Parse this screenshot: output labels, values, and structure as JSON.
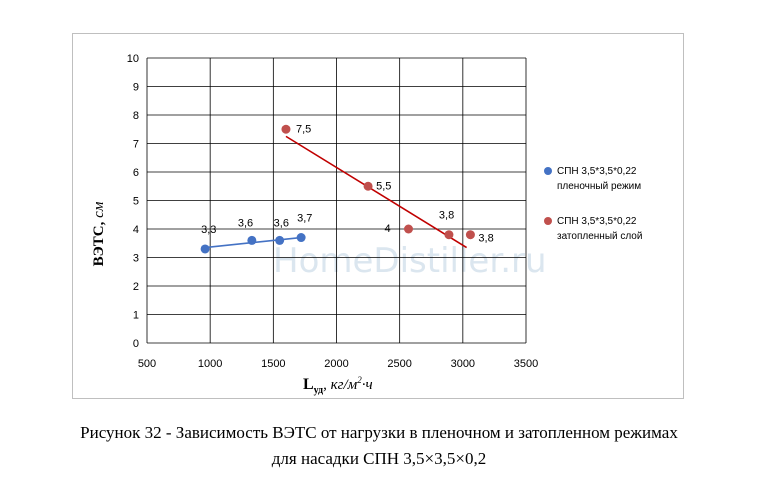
{
  "watermark": "HomeDistiller.ru",
  "caption": {
    "line1": "Рисунок 32 - Зависимость ВЭТС от нагрузки в пленочном и затопленном режимах",
    "line2": "для насадки СПН 3,5×3,5×0,2"
  },
  "chart_data": {
    "type": "scatter",
    "ylabel": {
      "main": "ВЭТС,",
      "unit": " см"
    },
    "xlabel": {
      "main": "L",
      "sub": "уд",
      "unit_pre": ", кг/м",
      "unit_sup": "2",
      "unit_post": "·ч"
    },
    "xlim": [
      500,
      3500
    ],
    "ylim": [
      0,
      10
    ],
    "x_ticks": [
      "500",
      "1000",
      "1500",
      "2000",
      "2500",
      "3000",
      "3500"
    ],
    "y_ticks": [
      "0",
      "1",
      "2",
      "3",
      "4",
      "5",
      "6",
      "7",
      "8",
      "9",
      "10"
    ],
    "grid": true,
    "legend_position": "right",
    "series": [
      {
        "name": "СПН 3,5*3,5*0,22\nпленочный режим",
        "color": "#4472c4",
        "line_color": "#4472c4",
        "points": [
          {
            "x": 960,
            "y": 3.3,
            "label": "3,3"
          },
          {
            "x": 1330,
            "y": 3.6,
            "label": "3,6"
          },
          {
            "x": 1550,
            "y": 3.6,
            "label": "3,6"
          },
          {
            "x": 1720,
            "y": 3.7,
            "label": "3,7"
          }
        ],
        "trend": [
          {
            "x": 960,
            "y": 3.35
          },
          {
            "x": 1720,
            "y": 3.7
          }
        ]
      },
      {
        "name": "СПН 3,5*3,5*0,22\nзатопленный слой",
        "color": "#c0504d",
        "line_color": "#c00000",
        "points": [
          {
            "x": 1600,
            "y": 7.5,
            "label": "7,5"
          },
          {
            "x": 2250,
            "y": 5.5,
            "label": "5,5"
          },
          {
            "x": 2570,
            "y": 4.0,
            "label": "4"
          },
          {
            "x": 2890,
            "y": 3.8,
            "label": "3,8"
          },
          {
            "x": 3060,
            "y": 3.8,
            "label": "3,8"
          }
        ],
        "trend": [
          {
            "x": 1600,
            "y": 7.25
          },
          {
            "x": 3030,
            "y": 3.35
          }
        ]
      }
    ]
  }
}
